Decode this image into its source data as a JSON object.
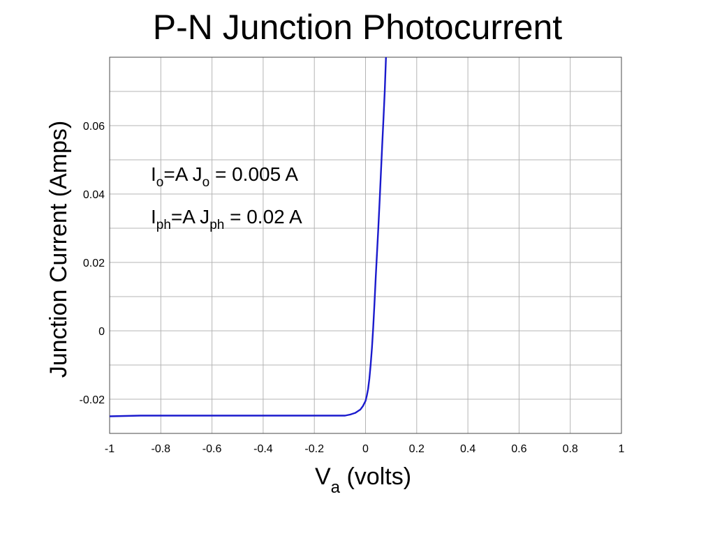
{
  "chart_data": {
    "type": "line",
    "title": "P-N Junction Photocurrent",
    "xlabel": {
      "main": "V",
      "sub": "a",
      "rest": " (volts)"
    },
    "ylabel": "Junction Current (Amps)",
    "xlim": [
      -1,
      1
    ],
    "ylim": [
      -0.03,
      0.08
    ],
    "x_ticks": [
      -1,
      -0.8,
      -0.6,
      -0.4,
      -0.2,
      0,
      0.2,
      0.4,
      0.6,
      0.8,
      1
    ],
    "x_tick_labels": [
      "-1",
      "-0.8",
      "-0.6",
      "-0.4",
      "-0.2",
      "0",
      "0.2",
      "0.4",
      "0.6",
      "0.8",
      "1"
    ],
    "y_ticks": [
      -0.02,
      0,
      0.02,
      0.04,
      0.06
    ],
    "y_tick_labels": [
      "-0.02",
      "0",
      "0.02",
      "0.04",
      "0.06"
    ],
    "y_grid": [
      -0.03,
      -0.02,
      -0.01,
      0,
      0.01,
      0.02,
      0.03,
      0.04,
      0.05,
      0.06,
      0.07,
      0.08
    ],
    "grid": true,
    "series": [
      {
        "color": "#1a1acd",
        "x": [
          -1,
          -0.88,
          -0.6,
          -0.3,
          -0.08,
          -0.06,
          -0.04,
          -0.02,
          -0.01,
          0,
          0.005,
          0.01,
          0.015,
          0.02,
          0.025,
          0.03,
          0.035,
          0.04,
          0.045,
          0.05,
          0.055,
          0.06,
          0.065,
          0.07,
          0.075,
          0.08
        ],
        "y": [
          -0.025,
          -0.0248,
          -0.0248,
          -0.0248,
          -0.0248,
          -0.0245,
          -0.024,
          -0.023,
          -0.022,
          -0.0205,
          -0.019,
          -0.017,
          -0.014,
          -0.01,
          -0.005,
          0.001,
          0.008,
          0.016,
          0.023,
          0.03,
          0.038,
          0.046,
          0.054,
          0.062,
          0.07,
          0.08
        ]
      }
    ],
    "annotations": [
      {
        "main": "I",
        "sub": "o",
        "rest1": "=A J",
        "sub2": "o",
        "rest2": " = 0.005 A"
      },
      {
        "main": "I",
        "sub": "ph",
        "rest1": "=A J",
        "sub2": "ph",
        "rest2": " = 0.02 A"
      }
    ]
  }
}
